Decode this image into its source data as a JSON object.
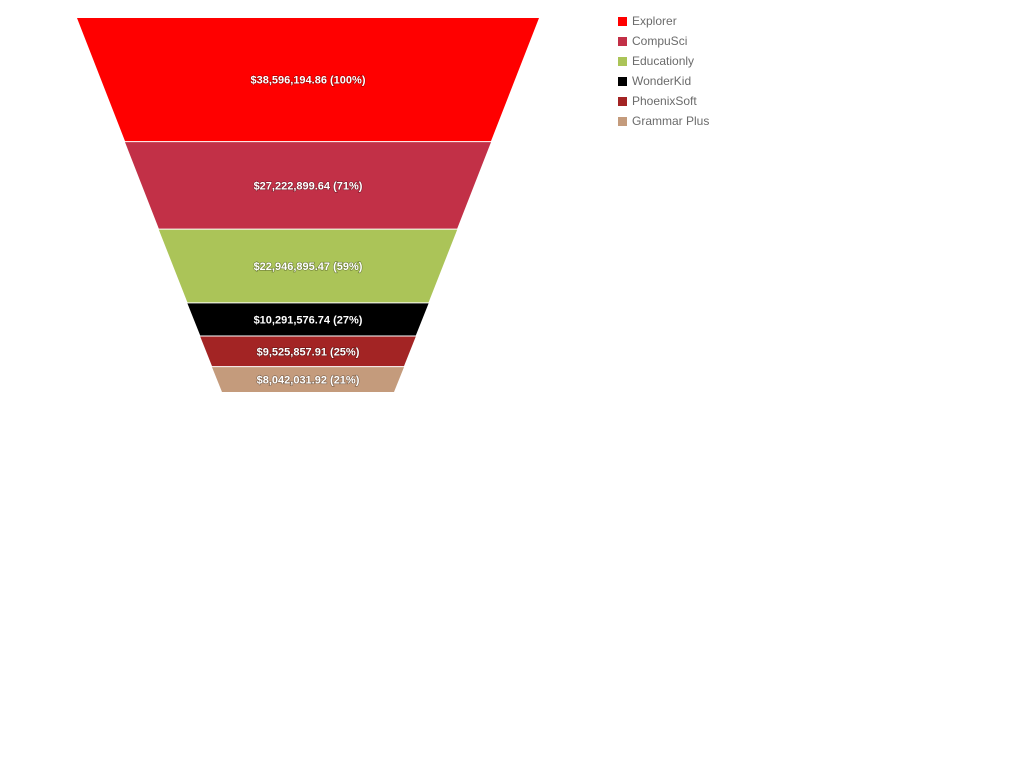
{
  "chart_data": {
    "type": "funnel",
    "categories": [
      "Explorer",
      "CompuSci",
      "Educationly",
      "WonderKid",
      "PhoenixSoft",
      "Grammar Plus"
    ],
    "values": [
      38596194.86,
      27222899.64,
      22946895.47,
      10291576.74,
      9525857.91,
      8042031.92
    ],
    "data_labels": [
      "$38,596,194.86 (100%)",
      "$27,222,899.64 (71%)",
      "$22,946,895.47 (59%)",
      "$10,291,576.74 (27%)",
      "$9,525,857.91 (25%)",
      "$8,042,031.92 (21%)"
    ],
    "colors": [
      "#ff0000",
      "#c23047",
      "#abc458",
      "#000000",
      "#a32424",
      "#c49b7c"
    ],
    "legend_position": "top-right",
    "title": "",
    "xlabel": "",
    "ylabel": ""
  }
}
